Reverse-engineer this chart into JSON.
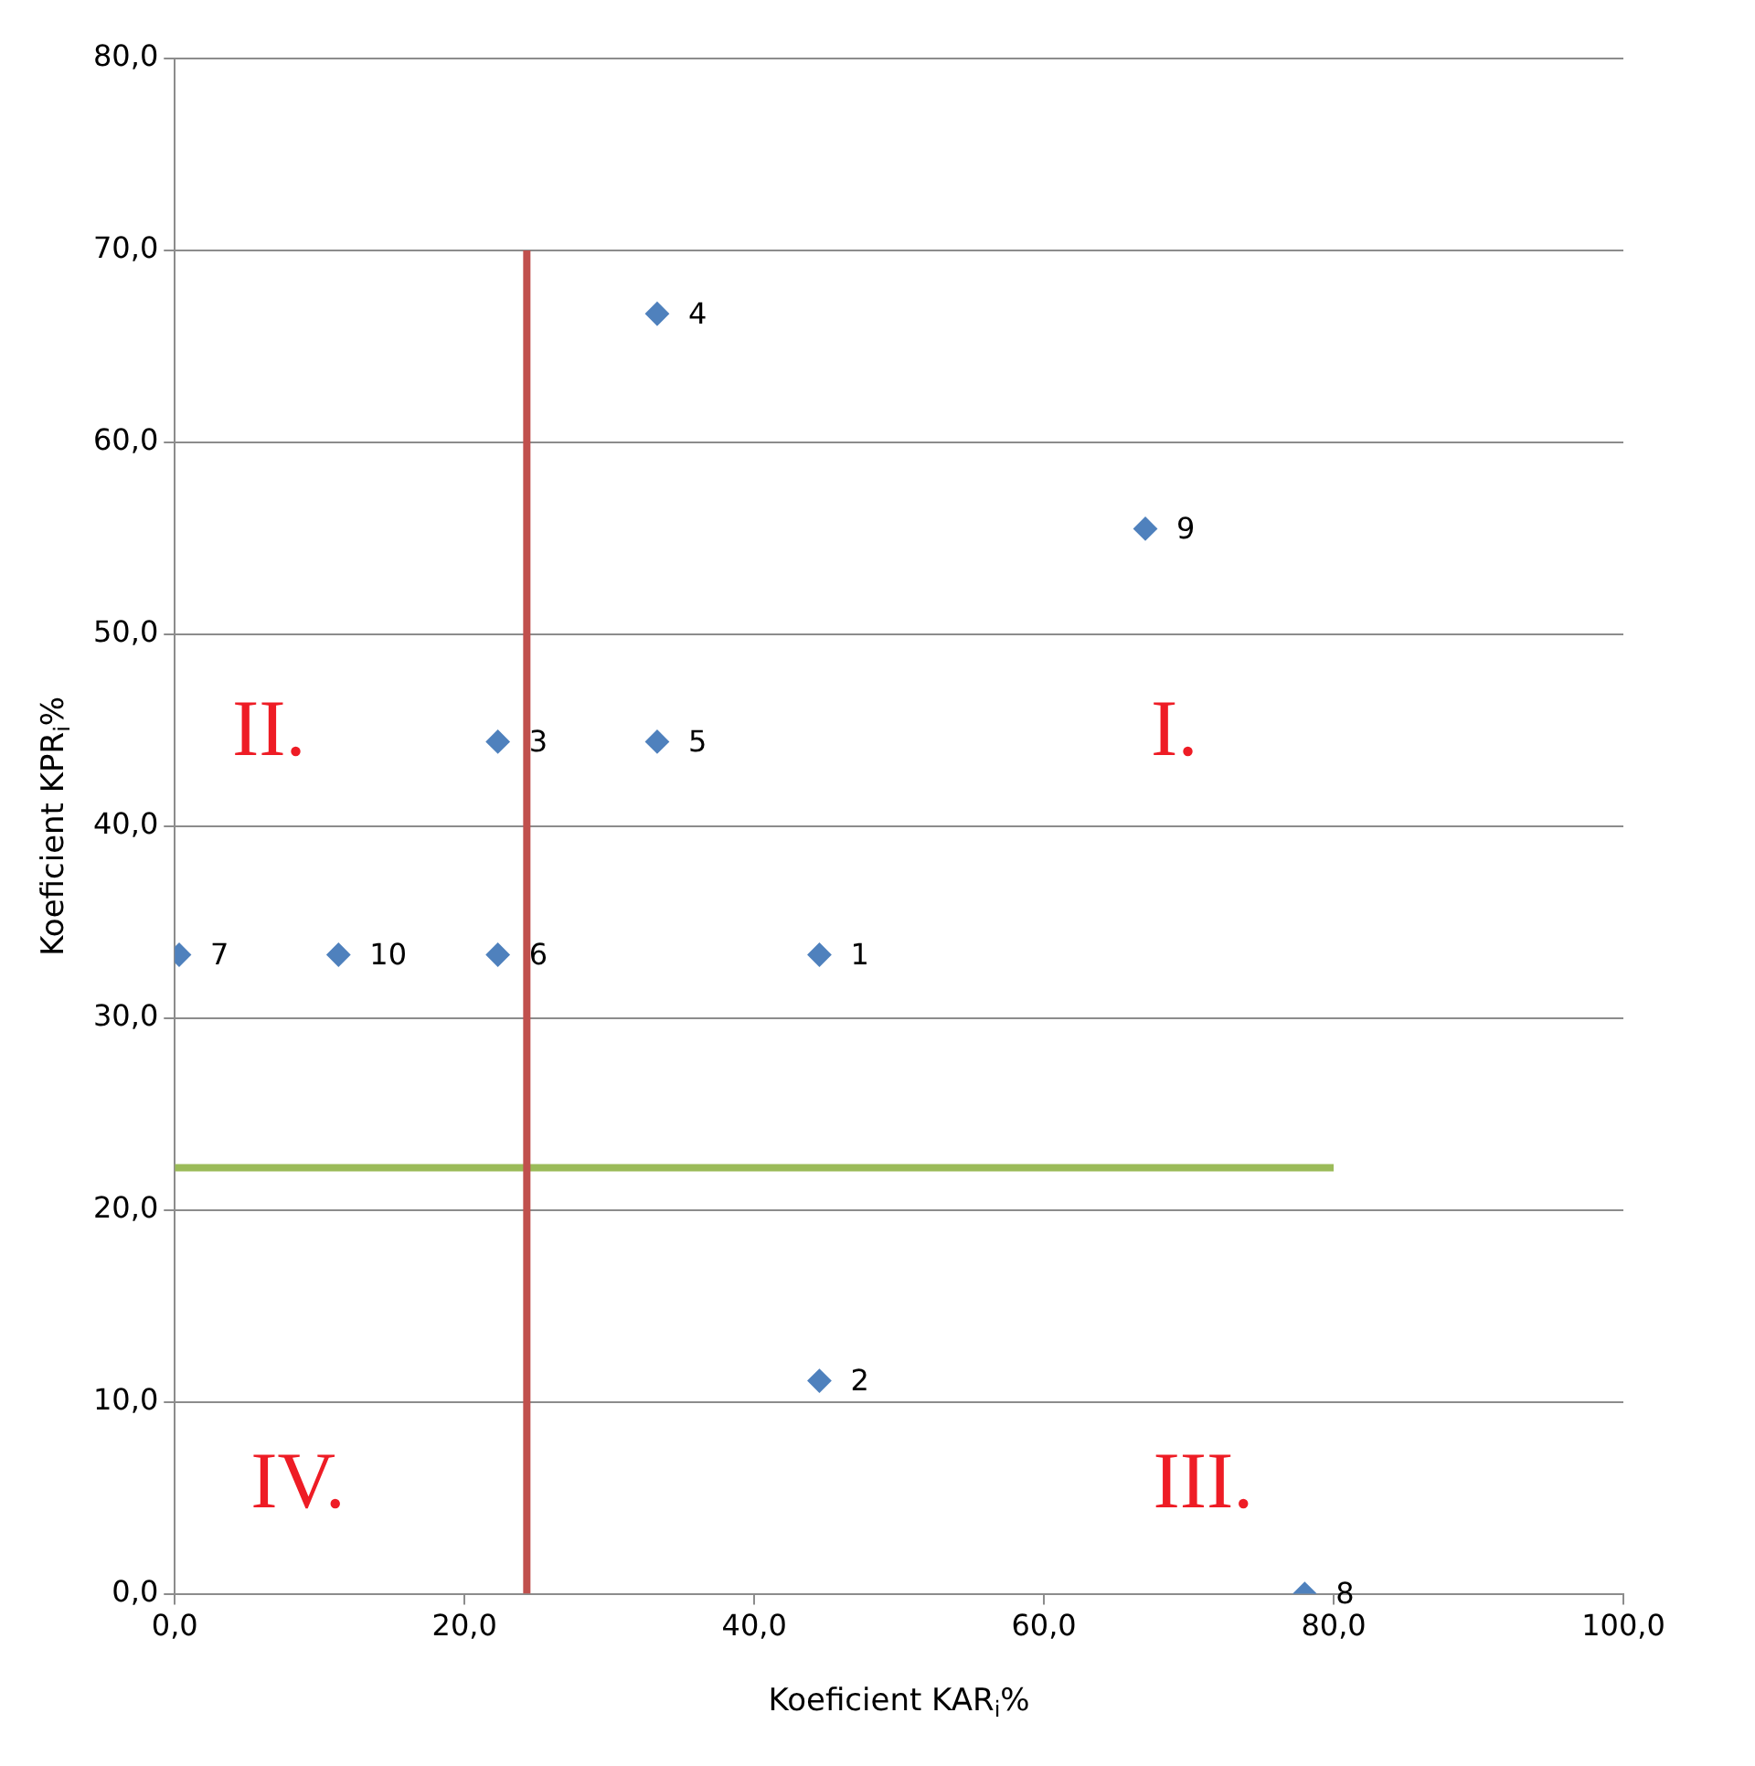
{
  "chart_data": {
    "type": "scatter",
    "xlabel": "Koeficient KAR$_{i}$%",
    "ylabel": "Koeficient KPR$_{i}$%",
    "xlim": [
      0,
      100
    ],
    "xticks": [
      {
        "value": 0,
        "label": "0,0"
      },
      {
        "value": 20,
        "label": "20,0"
      },
      {
        "value": 40,
        "label": "40,0"
      },
      {
        "value": 60,
        "label": "60,0"
      },
      {
        "value": 80,
        "label": "80,0"
      },
      {
        "value": 100,
        "label": "100,0"
      }
    ],
    "ylim": [
      0,
      80
    ],
    "yticks": [
      {
        "value": 0,
        "label": "0,0"
      },
      {
        "value": 10,
        "label": "10,0"
      },
      {
        "value": 20,
        "label": "20,0"
      },
      {
        "value": 30,
        "label": "30,0"
      },
      {
        "value": 40,
        "label": "40,0"
      },
      {
        "value": 50,
        "label": "50,0"
      },
      {
        "value": 60,
        "label": "60,0"
      },
      {
        "value": 70,
        "label": "70,0"
      },
      {
        "value": 80,
        "label": "80,0"
      }
    ],
    "grid": "y",
    "legend": false,
    "marker": "diamond",
    "series": [
      {
        "color": "#4f81bd",
        "x": [
          44.5,
          44.5,
          22.3,
          33.3,
          33.3,
          22.3,
          0.3,
          78,
          67,
          11.3
        ],
        "values": [
          33.3,
          11.1,
          44.4,
          66.7,
          44.4,
          33.3,
          33.3,
          0,
          55.5,
          33.3
        ]
      },
      {
        "type": "line",
        "color": "#c0504d",
        "x": [
          24.3,
          24.3
        ],
        "values": [
          0,
          70
        ],
        "marker": "none"
      },
      {
        "type": "line",
        "color": "#9bbb59",
        "x": [
          0,
          80
        ],
        "values": [
          22.2,
          22.2
        ],
        "marker": "none"
      }
    ],
    "annotations": [
      {
        "text": "1",
        "x": 44.5,
        "y": 33.3
      },
      {
        "text": "2",
        "x": 44.5,
        "y": 11.1
      },
      {
        "text": "3",
        "x": 22.3,
        "y": 44.4
      },
      {
        "text": "4",
        "x": 33.3,
        "y": 66.7
      },
      {
        "text": "5",
        "x": 33.3,
        "y": 44.4
      },
      {
        "text": "6",
        "x": 22.3,
        "y": 33.3
      },
      {
        "text": "7",
        "x": 0.3,
        "y": 33.3
      },
      {
        "text": "8",
        "x": 78,
        "y": 0
      },
      {
        "text": "9",
        "x": 67,
        "y": 55.5
      },
      {
        "text": "10",
        "x": 11.3,
        "y": 33.3
      },
      "II.",
      "I.",
      "IV.",
      "III."
    ]
  }
}
